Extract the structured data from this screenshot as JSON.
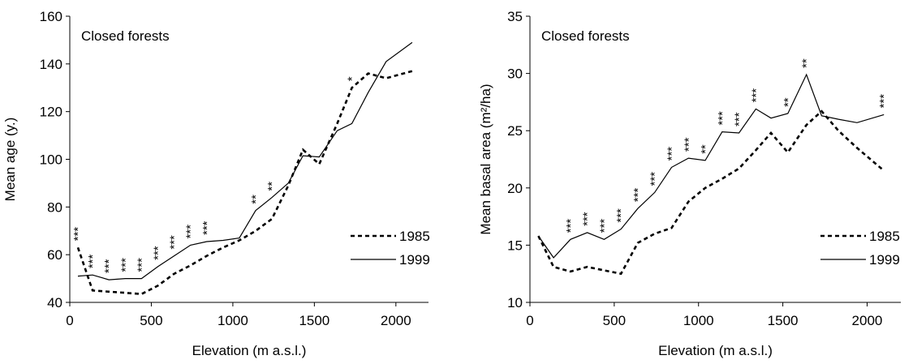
{
  "chart_data": [
    {
      "type": "line",
      "title": "Closed forests",
      "xlabel": "Elevation (m a.s.l.)",
      "ylabel": "Mean age (y.)",
      "xlim": [
        0,
        2200
      ],
      "ylim": [
        40,
        160
      ],
      "xticks": [
        "0",
        "500",
        "1000",
        "1500",
        "2000"
      ],
      "yticks": [
        "40",
        "60",
        "80",
        "100",
        "120",
        "140",
        "160"
      ],
      "legend_position": "bottom-right",
      "series": [
        {
          "name": "1985",
          "line_style": "dashed",
          "x": [
            50,
            140,
            240,
            340,
            440,
            540,
            640,
            740,
            840,
            940,
            1040,
            1140,
            1240,
            1340,
            1430,
            1530,
            1640,
            1730,
            1830,
            1940,
            2100
          ],
          "y": [
            63,
            45,
            44.5,
            44,
            43.5,
            47,
            52,
            55.5,
            59.5,
            63,
            66,
            70,
            75,
            89,
            104,
            98,
            115,
            130,
            136,
            134,
            137
          ]
        },
        {
          "name": "1999",
          "line_style": "solid",
          "x": [
            50,
            140,
            240,
            340,
            440,
            540,
            640,
            740,
            840,
            940,
            1040,
            1140,
            1240,
            1340,
            1430,
            1530,
            1640,
            1730,
            1830,
            1940,
            2100
          ],
          "y": [
            51,
            51.5,
            49.5,
            50,
            50,
            55,
            59.5,
            64,
            65.5,
            66,
            67,
            78.5,
            84,
            90,
            101.5,
            101,
            112,
            115,
            128,
            141,
            149
          ]
        }
      ],
      "significance": [
        {
          "x": 50,
          "text": "***"
        },
        {
          "x": 140,
          "text": "***"
        },
        {
          "x": 240,
          "text": "***"
        },
        {
          "x": 340,
          "text": "***"
        },
        {
          "x": 440,
          "text": "***"
        },
        {
          "x": 540,
          "text": "***"
        },
        {
          "x": 640,
          "text": "***"
        },
        {
          "x": 740,
          "text": "***"
        },
        {
          "x": 840,
          "text": "***"
        },
        {
          "x": 1140,
          "text": "**"
        },
        {
          "x": 1240,
          "text": "**"
        },
        {
          "x": 1730,
          "text": "*"
        }
      ]
    },
    {
      "type": "line",
      "title": "Closed forests",
      "xlabel": "Elevation (m a.s.l.)",
      "ylabel": "Mean basal area (m²/ha)",
      "xlim": [
        0,
        2200
      ],
      "ylim": [
        10,
        35
      ],
      "xticks": [
        "0",
        "500",
        "1000",
        "1500",
        "2000"
      ],
      "yticks": [
        "10",
        "15",
        "20",
        "25",
        "30",
        "35"
      ],
      "legend_position": "bottom-right",
      "series": [
        {
          "name": "1985",
          "line_style": "dashed",
          "x": [
            50,
            140,
            240,
            340,
            440,
            540,
            640,
            740,
            840,
            940,
            1040,
            1140,
            1240,
            1340,
            1430,
            1530,
            1640,
            1730,
            1830,
            1940,
            2100
          ],
          "y": [
            15.8,
            13.1,
            12.7,
            13.1,
            12.8,
            12.5,
            15.2,
            16,
            16.5,
            18.8,
            20,
            20.8,
            21.7,
            23.3,
            24.8,
            23.1,
            25.5,
            26.7,
            25,
            23.5,
            21.5
          ]
        },
        {
          "name": "1999",
          "line_style": "solid",
          "x": [
            50,
            140,
            240,
            340,
            440,
            540,
            640,
            740,
            840,
            940,
            1040,
            1140,
            1240,
            1340,
            1430,
            1530,
            1640,
            1730,
            1830,
            1940,
            2100
          ],
          "y": [
            15.8,
            13.9,
            15.5,
            16.1,
            15.5,
            16.4,
            18.2,
            19.6,
            21.8,
            22.6,
            22.4,
            24.9,
            24.8,
            26.9,
            26.1,
            26.5,
            29.9,
            26.3,
            26,
            25.7,
            26.4
          ]
        }
      ],
      "significance": [
        {
          "x": 240,
          "text": "***"
        },
        {
          "x": 340,
          "text": "***"
        },
        {
          "x": 440,
          "text": "***"
        },
        {
          "x": 540,
          "text": "***"
        },
        {
          "x": 640,
          "text": "***"
        },
        {
          "x": 740,
          "text": "***"
        },
        {
          "x": 840,
          "text": "***"
        },
        {
          "x": 940,
          "text": "***"
        },
        {
          "x": 1040,
          "text": "**"
        },
        {
          "x": 1140,
          "text": "***"
        },
        {
          "x": 1240,
          "text": "***"
        },
        {
          "x": 1340,
          "text": "***"
        },
        {
          "x": 1530,
          "text": "**"
        },
        {
          "x": 1640,
          "text": "**"
        },
        {
          "x": 2100,
          "text": "***"
        }
      ]
    }
  ]
}
